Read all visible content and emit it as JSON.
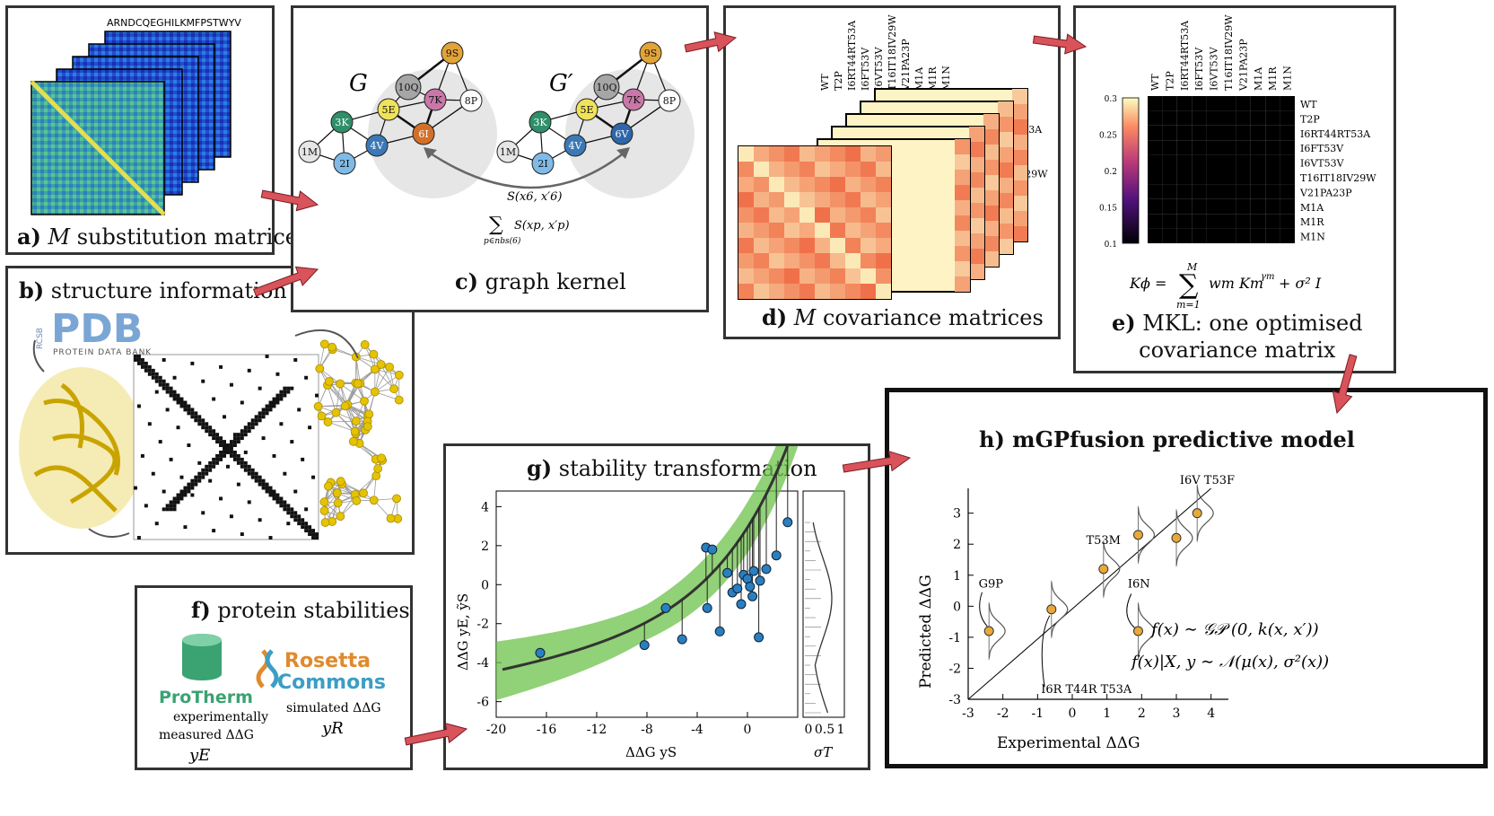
{
  "panels": {
    "a": {
      "letter": "a)",
      "text": " substitution matrices",
      "m": "M",
      "aa_alphabet": "ARNDCQEGHILKMFPSTWYV"
    },
    "b": {
      "letter": "b)",
      "text": " structure information",
      "pdb_logo": "PDB",
      "pdb_rcsb": "RCSB",
      "pdb_sub": "PROTEIN DATA BANK"
    },
    "c": {
      "letter": "c)",
      "text": " graph kernel",
      "g": "G",
      "gprime": "G′",
      "nodes_g": [
        "9S",
        "10Q",
        "7K",
        "8P",
        "5E",
        "3K",
        "6I",
        "4V",
        "1M",
        "2I"
      ],
      "nodes_gp": [
        "9S",
        "10Q",
        "7K",
        "8P",
        "5E",
        "3K",
        "6V",
        "4V",
        "1M",
        "2I"
      ],
      "s_label": "S(x6, x′6)",
      "sum_label": "S(xp, x′p)",
      "sum_sub": "p∈nbs(6)"
    },
    "d": {
      "letter": "d)",
      "text": " covariance matrices",
      "m": "M",
      "labels": [
        "WT",
        "T2P",
        "I6RT44RT53A",
        "I6FT53V",
        "I6VT53V",
        "T16IT18IV29W",
        "V21PA23P",
        "M1A",
        "M1R",
        "M1N"
      ]
    },
    "e": {
      "letter": "e)",
      "text_line1": " MKL: one optimised",
      "text_line2": "covariance matrix",
      "formula_lhs": "Kϕ =",
      "formula_rhs": "wm Km",
      "sum_top": "M",
      "sum_bottom": "m=1",
      "formula_gamma": "γm",
      "formula_tail": "+ σ² I",
      "colorbar": [
        "0.3",
        "0.25",
        "0.2",
        "0.15",
        "0.1"
      ],
      "labels": [
        "WT",
        "T2P",
        "I6RT44RT53A",
        "I6FT53V",
        "I6VT53V",
        "T16IT18IV29W",
        "V21PA23P",
        "M1A",
        "M1R",
        "M1N"
      ]
    },
    "f": {
      "letter": "f)",
      "text": " protein stabilities",
      "protherm": "ProTherm",
      "protherm_l1": "experimentally",
      "protherm_l2": "measured ΔΔG",
      "protherm_y": "yE",
      "rosetta_l1": "Rosetta",
      "rosetta_l2": "Commons",
      "rosetta_desc": "simulated ΔΔG",
      "rosetta_y": "yR"
    },
    "g": {
      "letter": "g)",
      "text": " stability transformation",
      "xlabel": "ΔΔG yS",
      "ylabel": "ΔΔG yE, ỹS",
      "sigma_label": "σT",
      "xticks": [
        "-20",
        "-16",
        "-12",
        "-8",
        "-4",
        "0"
      ],
      "yticks": [
        "4",
        "2",
        "0",
        "-2",
        "-4",
        "-6"
      ],
      "sigma_ticks": [
        "0",
        "0.5",
        "1"
      ]
    },
    "h": {
      "letter": "h)",
      "text": " mGPfusion predictive model",
      "xlabel": "Experimental ΔΔG",
      "ylabel": "Predicted ΔΔG",
      "xticks": [
        "-3",
        "-2",
        "-1",
        "0",
        "1",
        "2",
        "3",
        "4"
      ],
      "yticks": [
        "3",
        "2",
        "1",
        "0",
        "-1",
        "-2",
        "-3"
      ],
      "formula1": "f(x) ∼ 𝒢𝒫 (0, k(x, x′))",
      "formula2": "f(x)|X, y ∼ 𝒩(μ(x), σ²(x))",
      "annotations": [
        "I6V T53F",
        "T53M",
        "G9P",
        "I6N",
        "I6R T44R T53A"
      ]
    }
  },
  "chart_data": {
    "type": "scatter",
    "title": "mGPfusion predictive model",
    "xlabel": "Experimental ΔΔG",
    "ylabel": "Predicted ΔΔG",
    "xlim": [
      -3,
      4.5
    ],
    "ylim": [
      -3,
      3.8
    ],
    "points": [
      {
        "x": -2.4,
        "y": -0.8,
        "label": "G9P"
      },
      {
        "x": -0.6,
        "y": -0.1,
        "label": "I6R T44R T53A"
      },
      {
        "x": 0.9,
        "y": 1.2,
        "label": "T53M"
      },
      {
        "x": 1.9,
        "y": 2.3,
        "label": ""
      },
      {
        "x": 1.9,
        "y": -0.8,
        "label": "I6N"
      },
      {
        "x": 3.0,
        "y": 2.2,
        "label": ""
      },
      {
        "x": 3.6,
        "y": 3.0,
        "label": "I6V T53F"
      }
    ]
  },
  "colors": {
    "arrow": "#d9535b",
    "panel_border": "#333333",
    "green": "#4caf3e",
    "blue": "#2e7db8",
    "orange": "#e9a838"
  }
}
